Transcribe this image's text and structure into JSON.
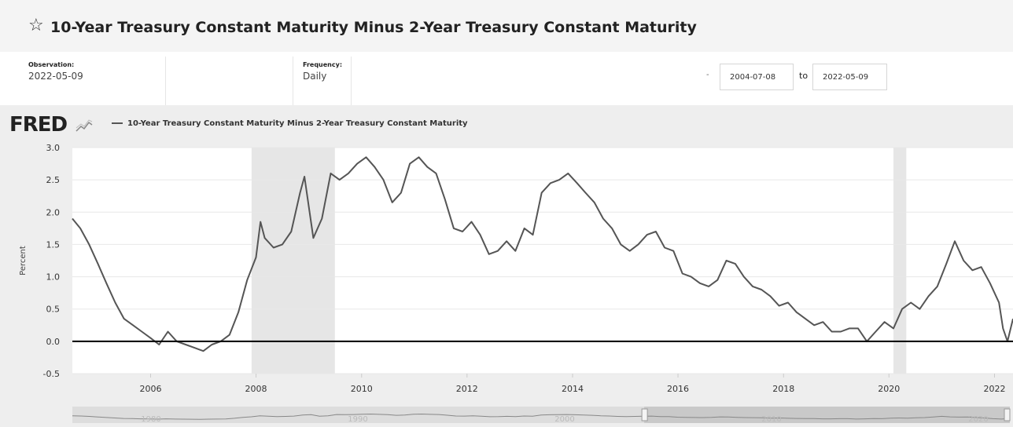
{
  "header": {
    "title": "10-Year Treasury Constant Maturity Minus 2-Year Treasury Constant Maturity",
    "favorite_icon": "star-outline-icon"
  },
  "meta": {
    "observation_label": "Observation:",
    "observation_value": "2022-05-09",
    "frequency_label": "Frequency:",
    "frequency_value": "Daily"
  },
  "date_range": {
    "start": "2004-07-08",
    "to_label": "to",
    "end": "2022-05-09",
    "dash": "-"
  },
  "brand": {
    "logo_text": "FRED",
    "logo_icon": "line-graph-icon"
  },
  "colors": {
    "series": "#555555",
    "recession": "#e6e6e6",
    "zero_line": "#000000",
    "panel": "#eeeeee"
  },
  "chart_data": {
    "type": "line",
    "title": "",
    "xlabel": "",
    "ylabel": "Percent",
    "xlim": [
      "2004-07-08",
      "2022-05-09"
    ],
    "ylim": [
      -0.5,
      3.0
    ],
    "yticks": [
      3.0,
      2.5,
      2.0,
      1.5,
      1.0,
      0.5,
      0.0,
      -0.5
    ],
    "xticks": [
      "2006",
      "2008",
      "2010",
      "2012",
      "2014",
      "2016",
      "2018",
      "2020",
      "2022"
    ],
    "grid": true,
    "legend": "top-left",
    "reference_line_y": 0.0,
    "recessions": [
      {
        "start": "2007-12-01",
        "end": "2009-06-30"
      },
      {
        "start": "2020-02-01",
        "end": "2020-04-30"
      }
    ],
    "navigator_ticks": [
      "1980",
      "1990",
      "2000",
      "2010",
      "2020"
    ],
    "series": [
      {
        "name": "10-Year Treasury Constant Maturity Minus 2-Year Treasury Constant Maturity",
        "x": [
          "2004-07-08",
          "2004-09-01",
          "2004-11-01",
          "2005-01-01",
          "2005-03-01",
          "2005-05-01",
          "2005-07-01",
          "2005-09-01",
          "2005-11-01",
          "2006-01-01",
          "2006-03-01",
          "2006-05-01",
          "2006-07-01",
          "2006-09-01",
          "2006-11-01",
          "2007-01-01",
          "2007-03-01",
          "2007-05-01",
          "2007-07-01",
          "2007-09-01",
          "2007-11-01",
          "2008-01-01",
          "2008-02-01",
          "2008-03-01",
          "2008-05-01",
          "2008-07-01",
          "2008-09-01",
          "2008-11-01",
          "2008-12-01",
          "2009-02-01",
          "2009-04-01",
          "2009-06-01",
          "2009-08-01",
          "2009-10-01",
          "2009-12-01",
          "2010-02-01",
          "2010-04-01",
          "2010-06-01",
          "2010-08-01",
          "2010-10-01",
          "2010-12-01",
          "2011-02-01",
          "2011-04-01",
          "2011-06-01",
          "2011-08-01",
          "2011-10-01",
          "2011-12-01",
          "2012-02-01",
          "2012-04-01",
          "2012-06-01",
          "2012-08-01",
          "2012-10-01",
          "2012-12-01",
          "2013-02-01",
          "2013-04-01",
          "2013-06-01",
          "2013-08-01",
          "2013-10-01",
          "2013-12-01",
          "2014-02-01",
          "2014-04-01",
          "2014-06-01",
          "2014-08-01",
          "2014-10-01",
          "2014-12-01",
          "2015-02-01",
          "2015-04-01",
          "2015-06-01",
          "2015-08-01",
          "2015-10-01",
          "2015-12-01",
          "2016-02-01",
          "2016-04-01",
          "2016-06-01",
          "2016-08-01",
          "2016-10-01",
          "2016-12-01",
          "2017-02-01",
          "2017-04-01",
          "2017-06-01",
          "2017-08-01",
          "2017-10-01",
          "2017-12-01",
          "2018-02-01",
          "2018-04-01",
          "2018-06-01",
          "2018-08-01",
          "2018-10-01",
          "2018-12-01",
          "2019-02-01",
          "2019-04-01",
          "2019-06-01",
          "2019-08-01",
          "2019-10-01",
          "2019-12-01",
          "2020-02-01",
          "2020-04-01",
          "2020-06-01",
          "2020-08-01",
          "2020-10-01",
          "2020-12-01",
          "2021-02-01",
          "2021-04-01",
          "2021-06-01",
          "2021-08-01",
          "2021-10-01",
          "2021-12-01",
          "2022-02-01",
          "2022-03-01",
          "2022-04-01",
          "2022-05-09"
        ],
        "y": [
          1.9,
          1.75,
          1.5,
          1.2,
          0.9,
          0.6,
          0.35,
          0.25,
          0.15,
          0.05,
          -0.05,
          0.15,
          0.0,
          -0.05,
          -0.1,
          -0.15,
          -0.05,
          0.0,
          0.1,
          0.45,
          0.95,
          1.3,
          1.85,
          1.6,
          1.45,
          1.5,
          1.7,
          2.3,
          2.55,
          1.6,
          1.9,
          2.6,
          2.5,
          2.6,
          2.75,
          2.85,
          2.7,
          2.5,
          2.15,
          2.3,
          2.75,
          2.85,
          2.7,
          2.6,
          2.2,
          1.75,
          1.7,
          1.85,
          1.65,
          1.35,
          1.4,
          1.55,
          1.4,
          1.75,
          1.65,
          2.3,
          2.45,
          2.5,
          2.6,
          2.45,
          2.3,
          2.15,
          1.9,
          1.75,
          1.5,
          1.4,
          1.5,
          1.65,
          1.7,
          1.45,
          1.4,
          1.05,
          1.0,
          0.9,
          0.85,
          0.95,
          1.25,
          1.2,
          1.0,
          0.85,
          0.8,
          0.7,
          0.55,
          0.6,
          0.45,
          0.35,
          0.25,
          0.3,
          0.15,
          0.15,
          0.2,
          0.2,
          0.0,
          0.15,
          0.3,
          0.2,
          0.5,
          0.6,
          0.5,
          0.7,
          0.85,
          1.2,
          1.55,
          1.25,
          1.1,
          1.15,
          0.9,
          0.6,
          0.2,
          0.0,
          0.35
        ]
      }
    ]
  }
}
